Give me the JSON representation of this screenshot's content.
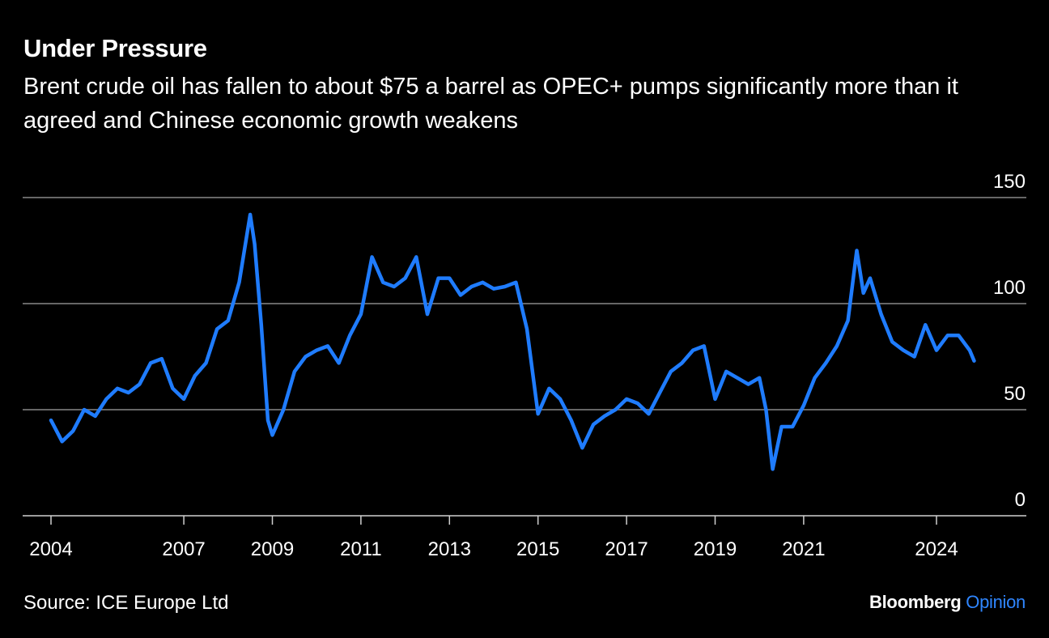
{
  "title": "Under Pressure",
  "subtitle": "Brent crude oil has fallen to about $75 a barrel as OPEC+ pumps significantly more than it agreed and Chinese economic growth weakens",
  "source": "Source: ICE Europe Ltd",
  "brand": {
    "name": "Bloomberg",
    "section": "Opinion",
    "accent_color": "#2f86ff"
  },
  "chart_data": {
    "type": "line",
    "title": "Under Pressure",
    "ylim": [
      0,
      150
    ],
    "yticks": [
      0,
      50,
      100,
      150
    ],
    "xlim": [
      2004,
      2025.6
    ],
    "xticks": [
      "2004",
      "2007",
      "2009",
      "2011",
      "2013",
      "2015",
      "2017",
      "2019",
      "2021",
      "2024"
    ],
    "grid": true,
    "line_color": "#1f7cff",
    "series": [
      {
        "x": [
          2004.0,
          2004.25,
          2004.5,
          2004.75,
          2005.0,
          2005.25,
          2005.5,
          2005.75,
          2006.0,
          2006.25,
          2006.5,
          2006.75,
          2007.0,
          2007.25,
          2007.5,
          2007.75,
          2008.0,
          2008.25,
          2008.5,
          2008.6,
          2008.75,
          2008.9,
          2009.0,
          2009.25,
          2009.5,
          2009.75,
          2010.0,
          2010.25,
          2010.5,
          2010.75,
          2011.0,
          2011.25,
          2011.5,
          2011.75,
          2012.0,
          2012.25,
          2012.5,
          2012.75,
          2013.0,
          2013.25,
          2013.5,
          2013.75,
          2014.0,
          2014.25,
          2014.5,
          2014.75,
          2015.0,
          2015.25,
          2015.5,
          2015.75,
          2016.0,
          2016.25,
          2016.5,
          2016.75,
          2017.0,
          2017.25,
          2017.5,
          2017.75,
          2018.0,
          2018.25,
          2018.5,
          2018.75,
          2019.0,
          2019.25,
          2019.5,
          2019.75,
          2020.0,
          2020.15,
          2020.3,
          2020.5,
          2020.75,
          2021.0,
          2021.25,
          2021.5,
          2021.75,
          2022.0,
          2022.2,
          2022.35,
          2022.5,
          2022.75,
          2023.0,
          2023.25,
          2023.5,
          2023.75,
          2024.0,
          2024.25,
          2024.5,
          2024.75,
          2024.85
        ],
        "values": [
          45,
          35,
          40,
          50,
          47,
          55,
          60,
          58,
          62,
          72,
          74,
          60,
          55,
          66,
          72,
          88,
          92,
          110,
          142,
          128,
          90,
          45,
          38,
          50,
          68,
          75,
          78,
          80,
          72,
          85,
          95,
          122,
          110,
          108,
          112,
          122,
          95,
          112,
          112,
          104,
          108,
          110,
          107,
          108,
          110,
          88,
          48,
          60,
          55,
          45,
          32,
          43,
          47,
          50,
          55,
          53,
          48,
          58,
          68,
          72,
          78,
          80,
          55,
          68,
          65,
          62,
          65,
          50,
          22,
          42,
          42,
          52,
          65,
          72,
          80,
          92,
          125,
          105,
          112,
          95,
          82,
          78,
          75,
          90,
          78,
          85,
          85,
          78,
          73
        ]
      }
    ]
  }
}
